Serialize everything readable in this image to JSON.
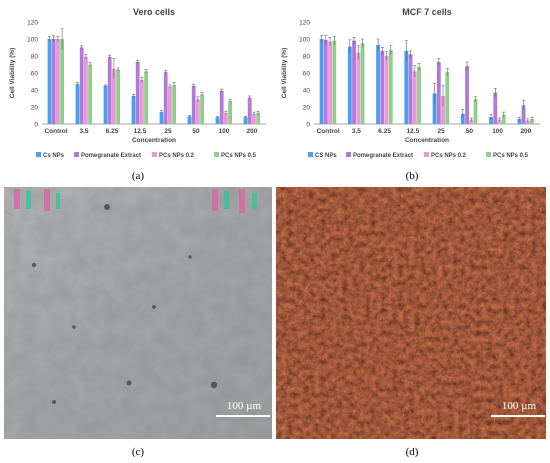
{
  "colors": {
    "series": [
      "#4a9df0",
      "#b27ad8",
      "#e79ad8",
      "#8ed08a"
    ],
    "axis": "#888888",
    "grid": "#e6e6e6",
    "text": "#404040"
  },
  "chart_data": [
    {
      "type": "bar",
      "title": "Vero cells",
      "xlabel": "Concentration",
      "ylabel": "Cell Viability (%)",
      "ylim": [
        0,
        120
      ],
      "yticks": [
        "0",
        "20",
        "40",
        "60",
        "80",
        "100",
        "120"
      ],
      "categories": [
        "Control",
        "3.5",
        "6.25",
        "12.5",
        "25",
        "50",
        "100",
        "200"
      ],
      "legend_position": "bottom",
      "grid": false,
      "series": [
        {
          "name": "Cs NPs",
          "values": [
            100,
            47,
            45,
            33,
            14,
            9,
            8,
            8
          ],
          "errors": [
            3,
            2,
            1,
            2,
            2,
            1,
            1,
            1
          ]
        },
        {
          "name": "Pomegranate Extract",
          "values": [
            100,
            90,
            79,
            73,
            61,
            45,
            39,
            31
          ],
          "errors": [
            4,
            2,
            2,
            2,
            2,
            2,
            2,
            2
          ]
        },
        {
          "name": "PCs NPs 0.2",
          "values": [
            100,
            79,
            65,
            52,
            44,
            29,
            13,
            12
          ],
          "errors": [
            3,
            3,
            12,
            3,
            2,
            3,
            2,
            2
          ]
        },
        {
          "name": "PCs NPs 0.5",
          "values": [
            100,
            70,
            64,
            62,
            46,
            35,
            27,
            13
          ],
          "errors": [
            12,
            2,
            2,
            2,
            3,
            2,
            2,
            2
          ]
        }
      ]
    },
    {
      "type": "bar",
      "title": "MCF 7 cells",
      "xlabel": "Concentration",
      "ylabel": "Cell Viability (%)",
      "ylim": [
        0,
        120
      ],
      "yticks": [
        "0",
        "20",
        "40",
        "60",
        "80",
        "100",
        "120"
      ],
      "categories": [
        "Control",
        "3.5",
        "6.25",
        "12.5",
        "25",
        "50",
        "100",
        "200"
      ],
      "legend_position": "bottom",
      "grid": false,
      "series": [
        {
          "name": "CS NPs",
          "values": [
            100,
            91,
            93,
            86,
            36,
            12,
            8,
            6
          ],
          "errors": [
            4,
            8,
            7,
            12,
            12,
            5,
            3,
            2
          ]
        },
        {
          "name": "Pomegranate Extract",
          "values": [
            99,
            98,
            86,
            82,
            73,
            68,
            37,
            22
          ],
          "errors": [
            5,
            4,
            4,
            4,
            4,
            5,
            5,
            6
          ]
        },
        {
          "name": "PCs NPs 0.2",
          "values": [
            97,
            84,
            80,
            62,
            33,
            5,
            5,
            4
          ],
          "errors": [
            5,
            8,
            5,
            7,
            12,
            2,
            2,
            2
          ]
        },
        {
          "name": "PCs NPs 0.5",
          "values": [
            98,
            95,
            87,
            67,
            61,
            29,
            11,
            6
          ],
          "errors": [
            5,
            5,
            5,
            4,
            4,
            3,
            3,
            2
          ]
        }
      ]
    }
  ],
  "panels": {
    "a": "(a)",
    "b": "(b)",
    "c": "(c)",
    "d": "(d)"
  },
  "micrographs": {
    "left_scale": "100 µm",
    "right_scale": "100 µm"
  }
}
